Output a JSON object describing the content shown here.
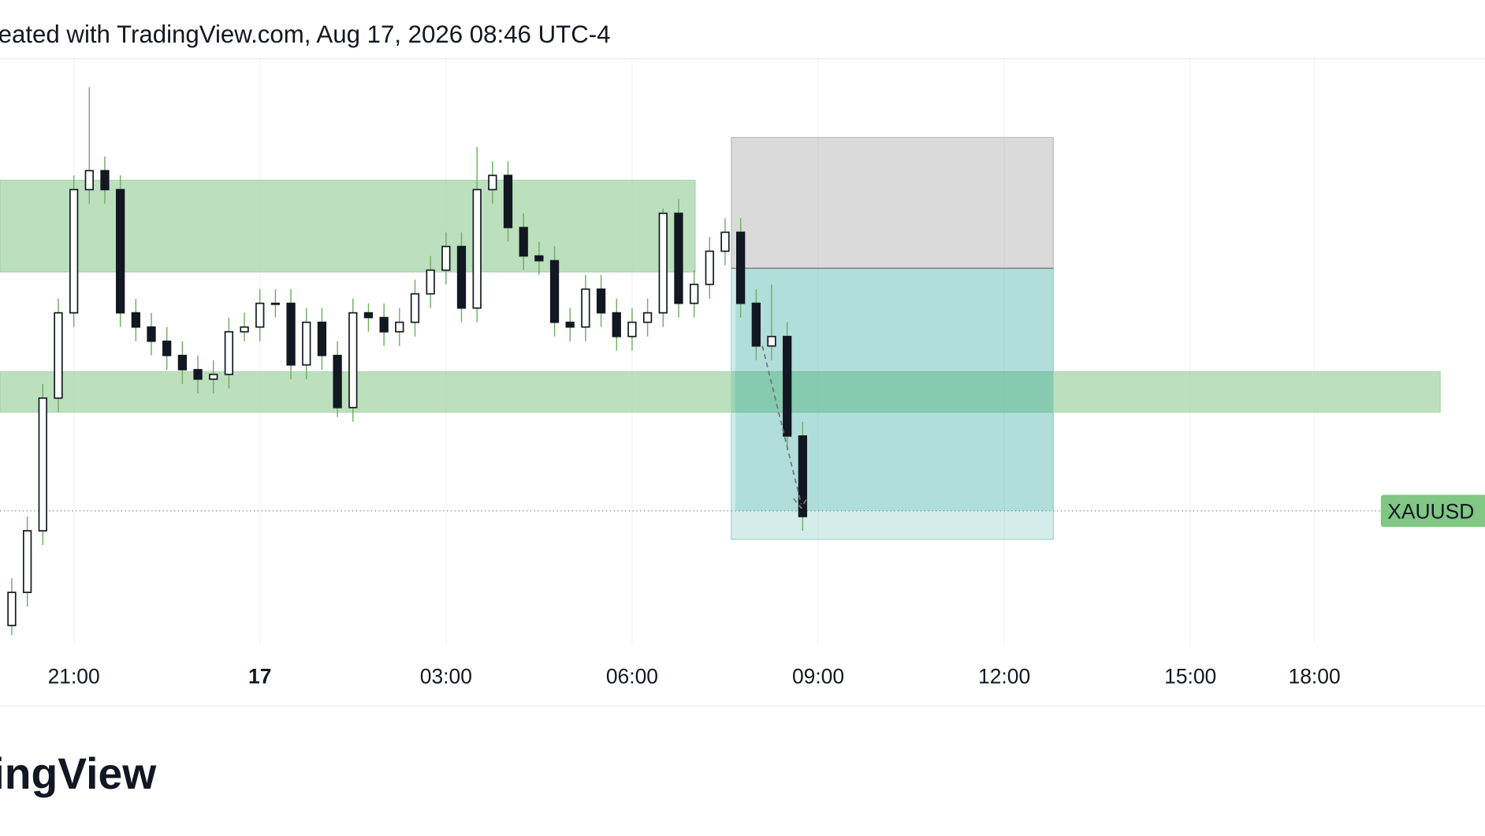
{
  "header": {
    "title": "eated with TradingView.com, Aug 17, 2026 08:46 UTC-4"
  },
  "logo": "ingView",
  "chart_data": {
    "type": "candlestick",
    "symbol": "XAUUSD",
    "current_price": 141,
    "xlim": [
      -4.19,
      19.75
    ],
    "ylim": [
      0,
      620
    ],
    "xticks": [
      {
        "value": -3,
        "label": "21:00"
      },
      {
        "value": 0,
        "label": "17"
      },
      {
        "value": 3,
        "label": "03:00"
      },
      {
        "value": 6,
        "label": "06:00"
      },
      {
        "value": 9,
        "label": "09:00"
      },
      {
        "value": 12,
        "label": "12:00"
      },
      {
        "value": 15,
        "label": "15:00"
      },
      {
        "value": 17,
        "label": "18:00"
      }
    ],
    "x": [
      -4,
      -3.75,
      -3.5,
      -3.25,
      -3,
      -2.75,
      -2.5,
      -2.25,
      -2,
      -1.75,
      -1.5,
      -1.25,
      -1,
      -0.75,
      -0.5,
      -0.25,
      0,
      0.25,
      0.5,
      0.75,
      1,
      1.25,
      1.5,
      1.75,
      2,
      2.25,
      2.5,
      2.75,
      3,
      3.25,
      3.5,
      3.75,
      4,
      4.25,
      4.5,
      4.75,
      5,
      5.25,
      5.5,
      5.75,
      6,
      6.25,
      6.5,
      6.75,
      7,
      7.25,
      7.5,
      7.75,
      8,
      8.25,
      8.5,
      8.75
    ],
    "ohlc": [
      [
        20,
        70,
        10,
        55
      ],
      [
        55,
        135,
        40,
        120
      ],
      [
        120,
        275,
        105,
        260
      ],
      [
        260,
        365,
        245,
        350
      ],
      [
        350,
        495,
        335,
        480
      ],
      [
        480,
        588,
        465,
        500
      ],
      [
        500,
        515,
        465,
        480
      ],
      [
        480,
        495,
        335,
        350
      ],
      [
        350,
        365,
        320,
        335
      ],
      [
        335,
        350,
        305,
        320
      ],
      [
        320,
        335,
        290,
        305
      ],
      [
        305,
        320,
        275,
        290
      ],
      [
        290,
        305,
        265,
        280
      ],
      [
        280,
        300,
        265,
        285
      ],
      [
        285,
        345,
        270,
        330
      ],
      [
        330,
        350,
        320,
        335
      ],
      [
        335,
        375,
        320,
        360
      ],
      [
        360,
        375,
        345,
        360
      ],
      [
        360,
        375,
        280,
        295
      ],
      [
        295,
        355,
        280,
        340
      ],
      [
        340,
        355,
        290,
        305
      ],
      [
        305,
        320,
        240,
        250
      ],
      [
        250,
        365,
        235,
        350
      ],
      [
        350,
        360,
        330,
        345
      ],
      [
        345,
        360,
        315,
        330
      ],
      [
        330,
        355,
        315,
        340
      ],
      [
        340,
        385,
        325,
        370
      ],
      [
        370,
        410,
        355,
        395
      ],
      [
        395,
        435,
        380,
        420
      ],
      [
        420,
        435,
        340,
        355
      ],
      [
        355,
        525,
        340,
        480
      ],
      [
        480,
        510,
        465,
        495
      ],
      [
        495,
        510,
        425,
        440
      ],
      [
        440,
        455,
        395,
        410
      ],
      [
        410,
        425,
        390,
        405
      ],
      [
        405,
        420,
        325,
        340
      ],
      [
        340,
        355,
        320,
        335
      ],
      [
        335,
        390,
        320,
        375
      ],
      [
        375,
        390,
        335,
        350
      ],
      [
        350,
        365,
        310,
        325
      ],
      [
        325,
        355,
        310,
        340
      ],
      [
        340,
        365,
        325,
        350
      ],
      [
        350,
        460,
        335,
        455
      ],
      [
        455,
        470,
        345,
        360
      ],
      [
        360,
        395,
        345,
        380
      ],
      [
        380,
        430,
        365,
        415
      ],
      [
        415,
        450,
        400,
        435
      ],
      [
        435,
        450,
        345,
        360
      ],
      [
        360,
        375,
        300,
        315
      ],
      [
        315,
        380,
        300,
        325
      ],
      [
        325,
        340,
        205,
        220
      ],
      [
        220,
        235,
        120,
        135
      ]
    ],
    "zones": [
      {
        "y": [
          393,
          490
        ],
        "x": [
          -4.19,
          7.02
        ],
        "color": "#a5d6a7"
      },
      {
        "y": [
          245,
          288
        ],
        "x": [
          -4.19,
          19.03
        ],
        "color": "#a5d6a7"
      }
    ],
    "position": {
      "x": [
        7.6,
        12.79
      ],
      "stop": 535,
      "entry": 397,
      "target": 111
    }
  }
}
